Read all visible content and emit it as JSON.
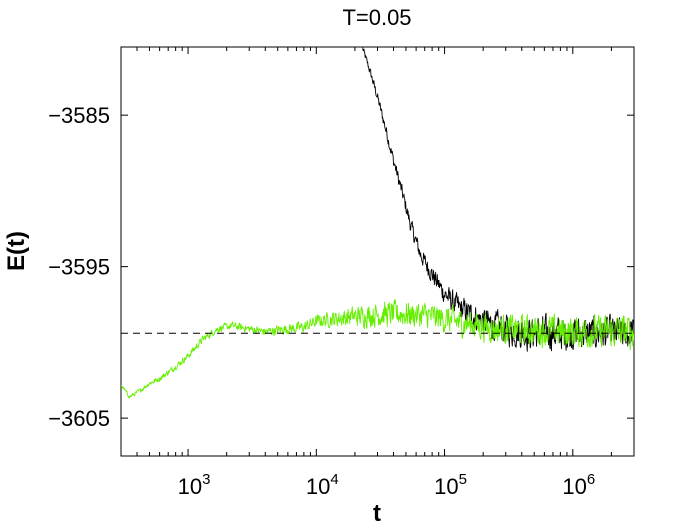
{
  "chart_data": {
    "type": "line",
    "title": "T=0.05",
    "xlabel": "t",
    "ylabel": "E(t)",
    "xscale": "log",
    "xlim": [
      300,
      3000000
    ],
    "ylim": [
      -3607.5,
      -3580.5
    ],
    "x_ticks": [
      {
        "value": 1000,
        "base": "10",
        "exp": "3"
      },
      {
        "value": 10000,
        "base": "10",
        "exp": "4"
      },
      {
        "value": 100000,
        "base": "10",
        "exp": "5"
      },
      {
        "value": 1000000,
        "base": "10",
        "exp": "6"
      }
    ],
    "y_ticks": [
      {
        "value": -3585,
        "label": "−3585"
      },
      {
        "value": -3595,
        "label": "−3595"
      },
      {
        "value": -3605,
        "label": "−3605"
      }
    ],
    "grid": false,
    "reference_line": {
      "y": -3599.4,
      "style": "dashed",
      "color": "#000000"
    },
    "series": [
      {
        "color": "#000000",
        "points": [
          [
            23000,
            -3580.6
          ],
          [
            26000,
            -3582.0
          ],
          [
            30000,
            -3583.8
          ],
          [
            35000,
            -3586.0
          ],
          [
            40000,
            -3588.0
          ],
          [
            47000,
            -3590.2
          ],
          [
            55000,
            -3592.4
          ],
          [
            65000,
            -3594.2
          ],
          [
            80000,
            -3595.5
          ],
          [
            100000,
            -3596.8
          ],
          [
            130000,
            -3597.7
          ],
          [
            170000,
            -3598.3
          ],
          [
            230000,
            -3598.8
          ],
          [
            320000,
            -3599.2
          ],
          [
            450000,
            -3599.4
          ],
          [
            700000,
            -3599.4
          ],
          [
            1000000,
            -3599.4
          ],
          [
            1500000,
            -3599.4
          ],
          [
            2200000,
            -3599.4
          ],
          [
            3000000,
            -3599.4
          ]
        ],
        "noise": [
          [
            23000,
            0.3
          ],
          [
            40000,
            0.6
          ],
          [
            80000,
            0.8
          ],
          [
            170000,
            1.2
          ],
          [
            450000,
            1.5
          ],
          [
            3000000,
            1.5
          ]
        ]
      },
      {
        "color": "#66ee00",
        "points": [
          [
            300,
            -3602.8
          ],
          [
            350,
            -3603.6
          ],
          [
            420,
            -3603.2
          ],
          [
            500,
            -3602.7
          ],
          [
            600,
            -3602.4
          ],
          [
            800,
            -3601.6
          ],
          [
            1000,
            -3600.9
          ],
          [
            1300,
            -3599.8
          ],
          [
            1700,
            -3599.1
          ],
          [
            2200,
            -3598.9
          ],
          [
            3000,
            -3599.1
          ],
          [
            4000,
            -3599.3
          ],
          [
            6000,
            -3599.1
          ],
          [
            8000,
            -3599.0
          ],
          [
            10000,
            -3598.6
          ],
          [
            15000,
            -3598.4
          ],
          [
            25000,
            -3598.2
          ],
          [
            40000,
            -3598.1
          ],
          [
            70000,
            -3598.2
          ],
          [
            120000,
            -3598.6
          ],
          [
            250000,
            -3599.1
          ],
          [
            500000,
            -3599.2
          ],
          [
            1000000,
            -3599.3
          ],
          [
            3000000,
            -3599.3
          ]
        ],
        "noise": [
          [
            300,
            0.15
          ],
          [
            1000,
            0.3
          ],
          [
            3000,
            0.35
          ],
          [
            10000,
            0.55
          ],
          [
            30000,
            1.1
          ],
          [
            100000,
            1.2
          ],
          [
            300000,
            1.3
          ],
          [
            3000000,
            1.5
          ]
        ]
      }
    ]
  }
}
